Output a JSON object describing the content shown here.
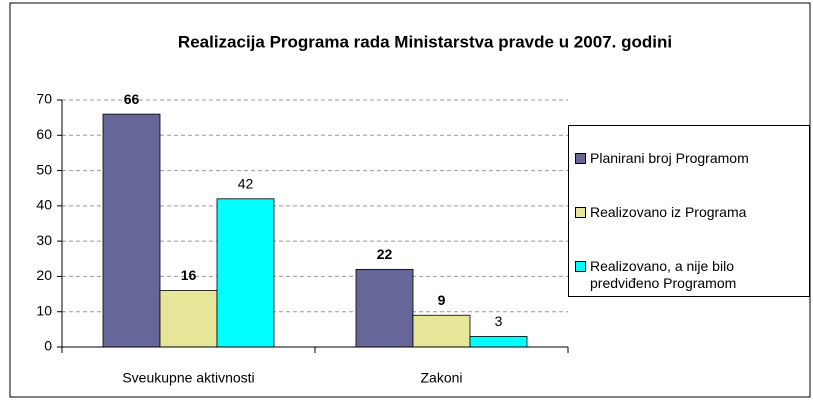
{
  "chart_data": {
    "type": "bar",
    "title": "Realizacija Programa rada Ministarstva pravde u 2007. godini",
    "categories": [
      "Sveukupne aktivnosti",
      "Zakoni"
    ],
    "series": [
      {
        "name": "Planirani broj Programom",
        "color": "#666699",
        "values": [
          66,
          22
        ]
      },
      {
        "name": "Realizovano iz Programa",
        "color": "#e6e699",
        "values": [
          16,
          9
        ]
      },
      {
        "name": "Realizovano, a nije bilo predviđeno Programom",
        "color": "#00ffff",
        "values": [
          42,
          3
        ]
      }
    ],
    "ylim": [
      0,
      70
    ],
    "yticks": [
      0,
      10,
      20,
      30,
      40,
      50,
      60,
      70
    ],
    "grid": true,
    "legend": "right"
  }
}
